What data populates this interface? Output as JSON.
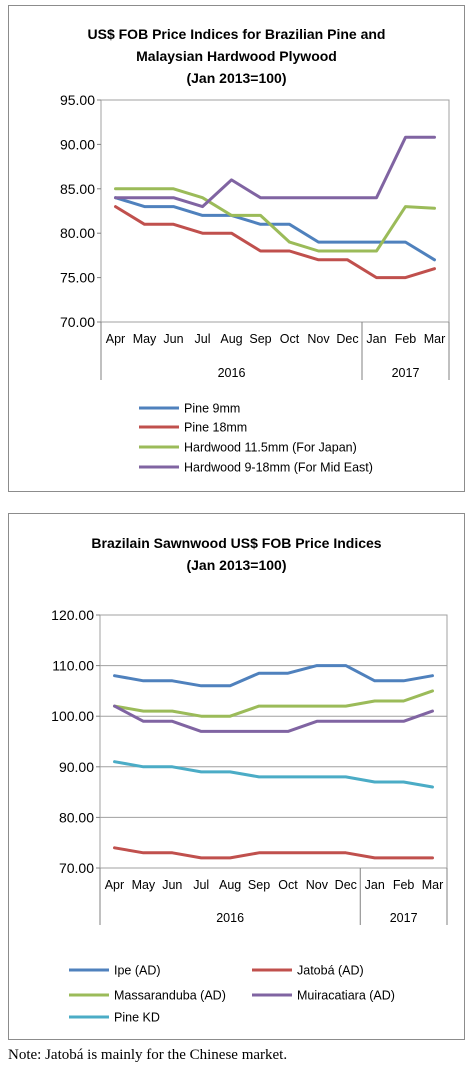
{
  "chart_data": [
    {
      "type": "line",
      "title_lines": [
        "US$ FOB Price Indices for Brazilian Pine and",
        "Malaysian Hardwood Plywood",
        "(Jan 2013=100)"
      ],
      "categories": [
        "Apr",
        "May",
        "Jun",
        "Jul",
        "Aug",
        "Sep",
        "Oct",
        "Nov",
        "Dec",
        "Jan",
        "Feb",
        "Mar"
      ],
      "year_groups": [
        {
          "label": "2016",
          "from": 0,
          "to": 8
        },
        {
          "label": "2017",
          "from": 9,
          "to": 11
        }
      ],
      "ylim": [
        70,
        95
      ],
      "yticks": [
        "70.00",
        "75.00",
        "80.00",
        "85.00",
        "90.00",
        "95.00"
      ],
      "grid": false,
      "legend_position": "bottom",
      "series": [
        {
          "name": "Pine 9mm",
          "color": "#4f81bd",
          "values": [
            84,
            83,
            83,
            82,
            82,
            81,
            81,
            79,
            79,
            79,
            79,
            77
          ]
        },
        {
          "name": "Pine 18mm",
          "color": "#c0504d",
          "values": [
            83,
            81,
            81,
            80,
            80,
            78,
            78,
            77,
            77,
            75,
            75,
            76
          ]
        },
        {
          "name": "Hardwood 11.5mm (For Japan)",
          "color": "#9bbb59",
          "values": [
            85,
            85,
            85,
            84,
            82,
            82,
            79,
            78,
            78,
            78,
            83,
            82.8
          ]
        },
        {
          "name": "Hardwood 9-18mm (For Mid East)",
          "color": "#8064a2",
          "values": [
            84,
            84,
            84,
            83,
            86,
            84,
            84,
            84,
            84,
            84,
            90.8,
            90.8
          ]
        }
      ]
    },
    {
      "type": "line",
      "title_lines": [
        "Brazilain Sawnwood US$ FOB Price Indices",
        "(Jan 2013=100)"
      ],
      "categories": [
        "Apr",
        "May",
        "Jun",
        "Jul",
        "Aug",
        "Sep",
        "Oct",
        "Nov",
        "Dec",
        "Jan",
        "Feb",
        "Mar"
      ],
      "year_groups": [
        {
          "label": "2016",
          "from": 0,
          "to": 8
        },
        {
          "label": "2017",
          "from": 9,
          "to": 11
        }
      ],
      "ylim": [
        70,
        120
      ],
      "yticks": [
        "70.00",
        "80.00",
        "90.00",
        "100.00",
        "110.00",
        "120.00"
      ],
      "grid": true,
      "legend_position": "bottom",
      "series": [
        {
          "name": "Ipe (AD)",
          "color": "#4f81bd",
          "values": [
            108,
            107,
            107,
            106,
            106,
            108.5,
            108.5,
            110,
            110,
            107,
            107,
            108
          ]
        },
        {
          "name": "Jatobá (AD)",
          "color": "#c0504d",
          "values": [
            74,
            73,
            73,
            72,
            72,
            73,
            73,
            73,
            73,
            72,
            72,
            72
          ]
        },
        {
          "name": "Massaranduba (AD)",
          "color": "#9bbb59",
          "values": [
            102,
            101,
            101,
            100,
            100,
            102,
            102,
            102,
            102,
            103,
            103,
            105
          ]
        },
        {
          "name": "Muiracatiara (AD)",
          "color": "#8064a2",
          "values": [
            102,
            99,
            99,
            97,
            97,
            97,
            97,
            99,
            99,
            99,
            99,
            101
          ]
        },
        {
          "name": "Pine KD",
          "color": "#4bacc6",
          "values": [
            91,
            90,
            90,
            89,
            89,
            88,
            88,
            88,
            88,
            87,
            87,
            86
          ]
        }
      ]
    }
  ],
  "note": "Note: Jatobá is mainly for the Chinese market."
}
